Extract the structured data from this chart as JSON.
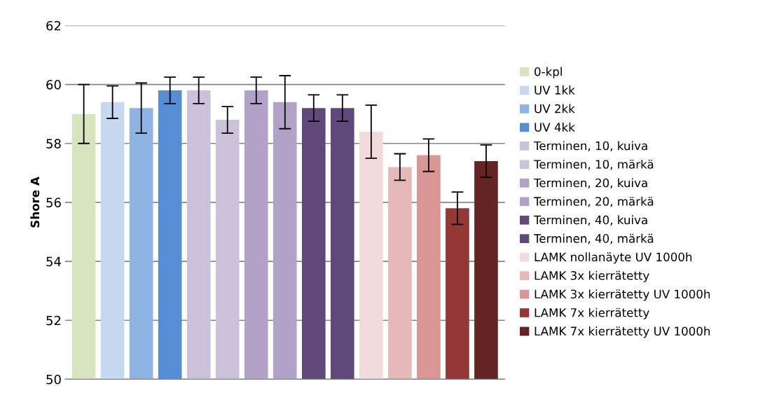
{
  "chart_data": {
    "type": "bar",
    "ylabel": "Shore A",
    "categories": [
      null
    ],
    "ylim": [
      50,
      62
    ],
    "yticks": [
      50,
      52,
      54,
      56,
      58,
      60,
      62
    ],
    "grid": "y",
    "legend": "right",
    "tick_labels": "y",
    "series": [
      {
        "name": "0-kpl",
        "color": "#d7e4bd",
        "values": [
          59.0
        ],
        "errors": [
          1.0
        ]
      },
      {
        "name": "UV 1kk",
        "color": "#c6d9f1",
        "values": [
          59.4
        ],
        "errors": [
          0.55
        ]
      },
      {
        "name": "UV 2kk",
        "color": "#8eb4e3",
        "values": [
          59.2
        ],
        "errors": [
          0.85
        ]
      },
      {
        "name": "UV 4kk",
        "color": "#558ed5",
        "values": [
          59.8
        ],
        "errors": [
          0.45
        ]
      },
      {
        "name": "Terminen, 10, kuiva",
        "color": "#ccc1da",
        "values": [
          59.8
        ],
        "errors": [
          0.45
        ]
      },
      {
        "name": "Terminen, 10, märkä",
        "color": "#ccc1da",
        "values": [
          58.8
        ],
        "errors": [
          0.45
        ]
      },
      {
        "name": "Terminen, 20, kuiva",
        "color": "#b3a2c7",
        "values": [
          59.8
        ],
        "errors": [
          0.45
        ]
      },
      {
        "name": "Terminen, 20, märkä",
        "color": "#b3a2c7",
        "values": [
          59.4
        ],
        "errors": [
          0.9
        ]
      },
      {
        "name": "Terminen, 40, kuiva",
        "color": "#604a7b",
        "values": [
          59.2
        ],
        "errors": [
          0.45
        ]
      },
      {
        "name": "Terminen, 40, märkä",
        "color": "#604a7b",
        "values": [
          59.2
        ],
        "errors": [
          0.45
        ]
      },
      {
        "name": "LAMK nollanäyte UV 1000h",
        "color": "#f2dcdb",
        "values": [
          58.4
        ],
        "errors": [
          0.9
        ]
      },
      {
        "name": "LAMK 3x kierrätetty",
        "color": "#e6b9b8",
        "values": [
          57.2
        ],
        "errors": [
          0.45
        ]
      },
      {
        "name": "LAMK 3x kierrätetty UV 1000h",
        "color": "#d99694",
        "values": [
          57.6
        ],
        "errors": [
          0.55
        ]
      },
      {
        "name": "LAMK 7x kierrätetty",
        "color": "#953735",
        "values": [
          55.8
        ],
        "errors": [
          0.55
        ]
      },
      {
        "name": "LAMK 7x kierrätetty UV 1000h",
        "color": "#632523",
        "values": [
          57.4
        ],
        "errors": [
          0.55
        ]
      }
    ]
  }
}
